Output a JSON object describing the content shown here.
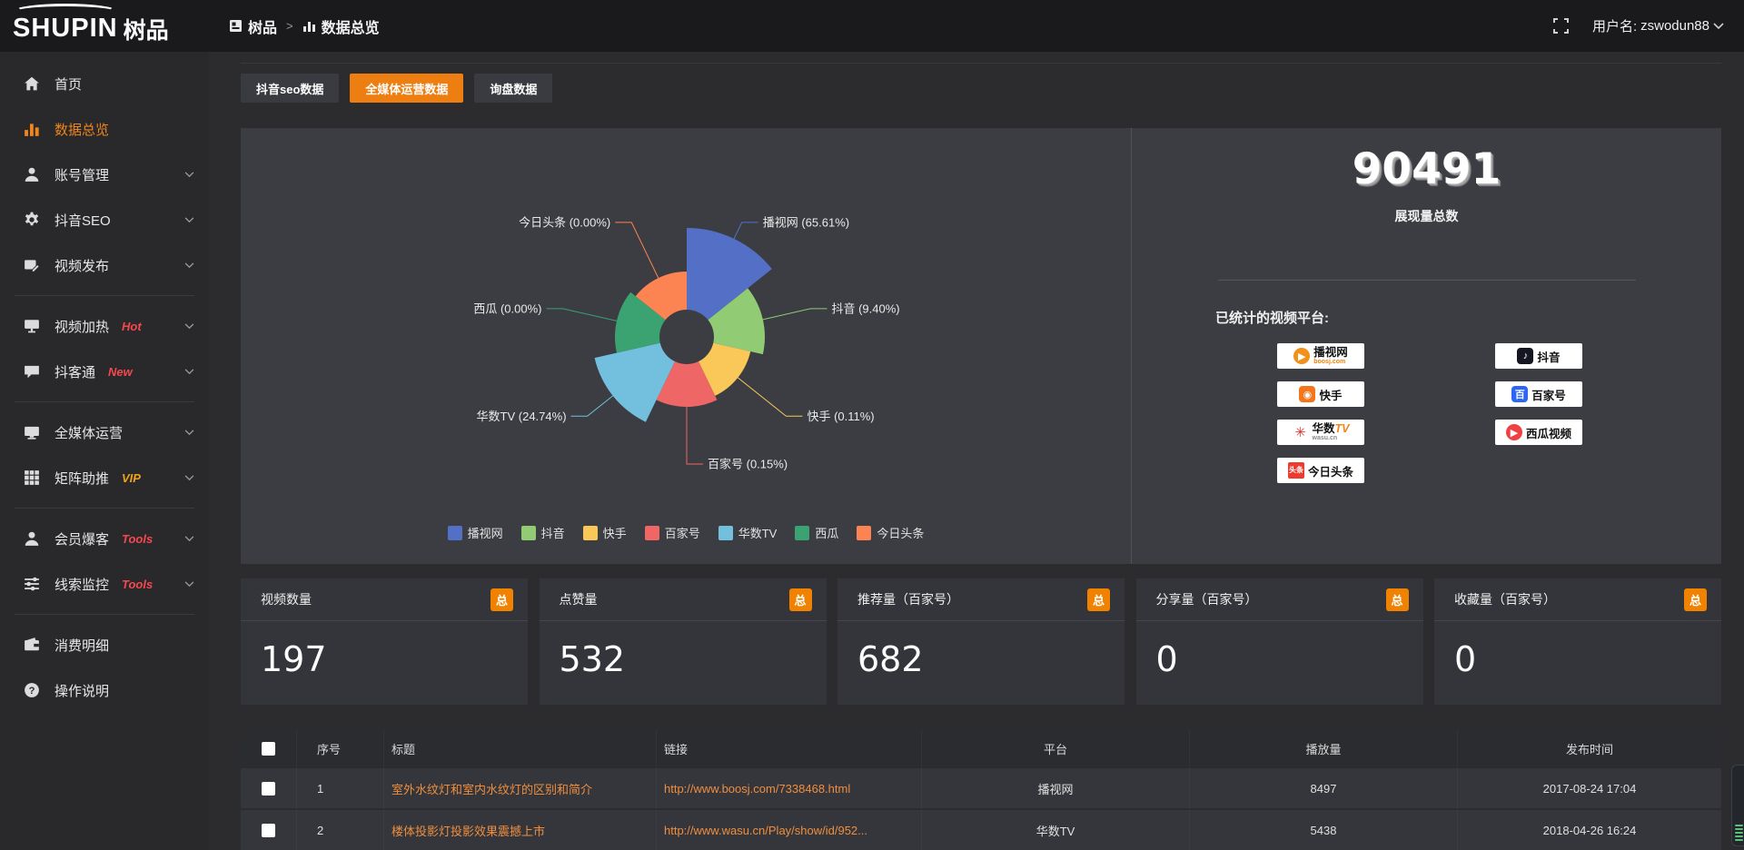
{
  "topbar": {
    "logo_en": "SHUPIN",
    "logo_cn": "树品",
    "breadcrumb": {
      "root": "树品",
      "separator": ">",
      "current": "数据总览"
    },
    "username_label": "用户名:",
    "username": "zswodun88"
  },
  "sidebar": {
    "items": [
      {
        "label": "首页"
      },
      {
        "label": "数据总览",
        "active": true
      },
      {
        "label": "账号管理",
        "expandable": true
      },
      {
        "label": "抖音SEO",
        "expandable": true
      },
      {
        "label": "视频发布",
        "expandable": true
      },
      {
        "label": "视频加热",
        "badge": "Hot",
        "expandable": true
      },
      {
        "label": "抖客通",
        "badge": "New",
        "expandable": true
      },
      {
        "label": "全媒体运营",
        "expandable": true
      },
      {
        "label": "矩阵助推",
        "badge": "VIP",
        "expandable": true
      },
      {
        "label": "会员爆客",
        "badge": "Tools",
        "expandable": true
      },
      {
        "label": "线索监控",
        "badge": "Tools",
        "expandable": true
      },
      {
        "label": "消费明细"
      },
      {
        "label": "操作说明"
      }
    ]
  },
  "tabs": [
    {
      "label": "抖音seo数据"
    },
    {
      "label": "全媒体运营数据",
      "active": true
    },
    {
      "label": "询盘数据"
    }
  ],
  "chart_data": {
    "type": "pie",
    "style": "rose",
    "inner_radius": 30,
    "label_format": "{name} ({percent}%)",
    "legend_position": "bottom",
    "series": [
      {
        "name": "播视网",
        "percent": 65.61,
        "color": "#5470c6",
        "radius": 120
      },
      {
        "name": "抖音",
        "percent": 9.4,
        "color": "#91cc75",
        "radius": 86
      },
      {
        "name": "快手",
        "percent": 0.11,
        "color": "#fac858",
        "radius": 72
      },
      {
        "name": "百家号",
        "percent": 0.15,
        "color": "#ee6666",
        "radius": 77
      },
      {
        "name": "华数TV",
        "percent": 24.74,
        "color": "#73c0de",
        "radius": 104
      },
      {
        "name": "西瓜",
        "percent": 0.0,
        "color": "#3ba272",
        "radius": 79
      },
      {
        "name": "今日头条",
        "percent": 0.0,
        "color": "#fc8452",
        "radius": 72
      }
    ]
  },
  "summary": {
    "total_value": "90491",
    "total_label": "展现量总数",
    "platforms_title": "已统计的视频平台:",
    "platforms": [
      {
        "name": "播视网",
        "sub": "boosj.com"
      },
      {
        "name": "抖音"
      },
      {
        "name": "快手"
      },
      {
        "name": "百家号"
      },
      {
        "name": "华数",
        "tv": "TV",
        "sub": "wasu.cn"
      },
      {
        "name": "西瓜视频"
      },
      {
        "name": "今日头条",
        "glyph": "头条"
      }
    ]
  },
  "stat_cards": [
    {
      "title": "视频数量",
      "badge": "总",
      "value": "197"
    },
    {
      "title": "点赞量",
      "badge": "总",
      "value": "532"
    },
    {
      "title": "推荐量（百家号）",
      "badge": "总",
      "value": "682"
    },
    {
      "title": "分享量（百家号）",
      "badge": "总",
      "value": "0"
    },
    {
      "title": "收藏量（百家号）",
      "badge": "总",
      "value": "0"
    }
  ],
  "table": {
    "columns": [
      "序号",
      "标题",
      "链接",
      "平台",
      "播放量",
      "发布时间"
    ],
    "rows": [
      {
        "index": "1",
        "title": "室外水纹灯和室内水纹灯的区别和简介",
        "link": "http://www.boosj.com/7338468.html",
        "platform": "播视网",
        "views": "8497",
        "time": "2017-08-24 17:04"
      },
      {
        "index": "2",
        "title": "楼体投影灯投影效果震撼上市",
        "link": "http://www.wasu.cn/Play/show/id/952...",
        "platform": "华数TV",
        "views": "5438",
        "time": "2018-04-26 16:24"
      }
    ]
  },
  "colors": {
    "accent_orange": "#ec7e12",
    "badge_orange": "#f08200",
    "link_orange": "#ef8e3f",
    "hot_red": "#f5484e",
    "vip_orange": "#f0a21b",
    "panel_bg": "#3b3d42",
    "topbar_bg": "#1a1a1c"
  }
}
